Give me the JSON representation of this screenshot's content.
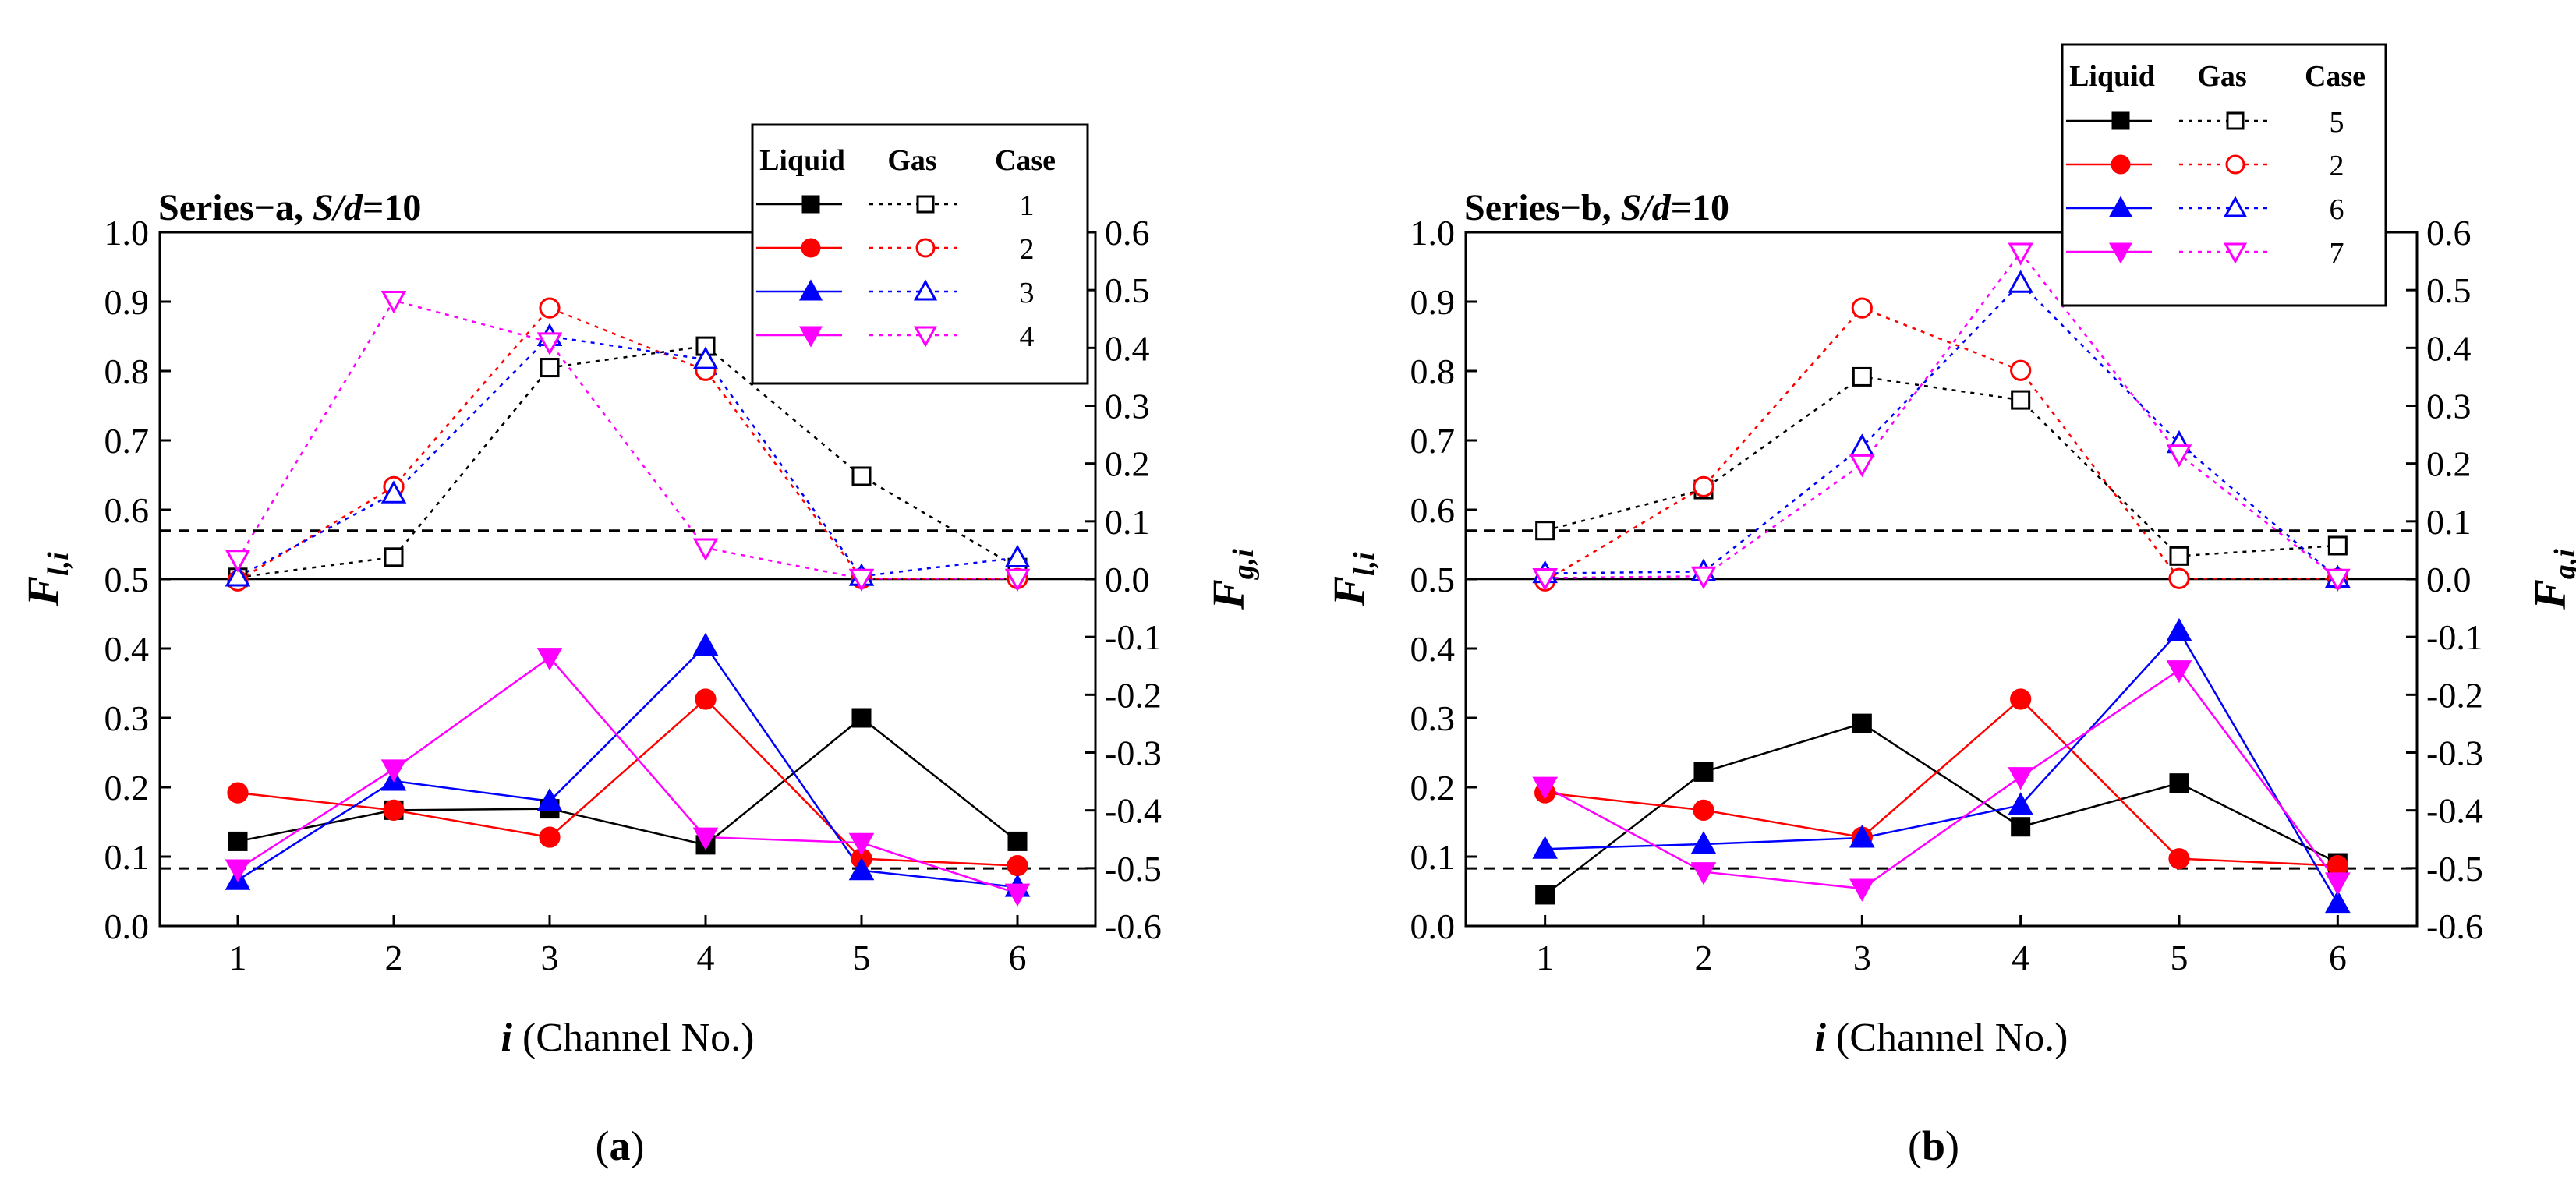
{
  "chart_data": [
    {
      "type": "line",
      "panel_label": "a",
      "title_prefix": "Series−a, ",
      "title_italic": "S/d",
      "title_suffix": "=10",
      "xlabel_italic": "i",
      "xlabel_rest": " (Channel No.)",
      "ylabel_main": "F",
      "ylabel_sub": "l,i",
      "y2label_main": "F",
      "y2label_sub": "g,i",
      "x": [
        1,
        2,
        3,
        4,
        5,
        6
      ],
      "xticks": [
        "1",
        "2",
        "3",
        "4",
        "5",
        "6"
      ],
      "xlim": [
        0.5,
        6.5
      ],
      "ylim": [
        0.0,
        1.0
      ],
      "y2lim": [
        -0.6,
        0.6
      ],
      "yticks": [
        "0.0",
        "0.1",
        "0.2",
        "0.3",
        "0.4",
        "0.5",
        "0.6",
        "0.7",
        "0.8",
        "0.9",
        "1.0"
      ],
      "y2ticks": [
        "-0.6",
        "-0.5",
        "-0.4",
        "-0.3",
        "-0.2",
        "-0.1",
        "0.0",
        "0.1",
        "0.2",
        "0.3",
        "0.4",
        "0.5",
        "0.6"
      ],
      "reference_lines": {
        "solid_y2": [
          0.0
        ],
        "dashed_y": [
          0.083,
          0.57
        ]
      },
      "legend": {
        "headers": [
          "Liquid",
          "Gas",
          "Case"
        ],
        "placement": "top-right"
      },
      "series": [
        {
          "case": "1",
          "color": "#000000",
          "marker": "square",
          "liquid": [
            0.122,
            0.167,
            0.169,
            0.117,
            0.3,
            0.122
          ],
          "gas": [
            0.003,
            0.038,
            0.366,
            0.403,
            0.178,
            0.02
          ]
        },
        {
          "case": "2",
          "color": "#ff0000",
          "marker": "circle",
          "liquid": [
            0.192,
            0.167,
            0.128,
            0.327,
            0.097,
            0.087
          ],
          "gas": [
            -0.003,
            0.16,
            0.469,
            0.361,
            0.001,
            0.001
          ]
        },
        {
          "case": "3",
          "color": "#0000ff",
          "marker": "triangle-up",
          "liquid": [
            0.066,
            0.209,
            0.18,
            0.404,
            0.08,
            0.056
          ],
          "gas": [
            0.004,
            0.148,
            0.42,
            0.38,
            0.005,
            0.037
          ]
        },
        {
          "case": "4",
          "color": "#ff00ff",
          "marker": "triangle-down",
          "liquid": [
            0.082,
            0.226,
            0.387,
            0.128,
            0.12,
            0.047
          ],
          "gas": [
            0.034,
            0.482,
            0.41,
            0.054,
            0.001,
            0.001
          ]
        }
      ]
    },
    {
      "type": "line",
      "panel_label": "b",
      "title_prefix": "Series−b, ",
      "title_italic": "S/d",
      "title_suffix": "=10",
      "xlabel_italic": "i",
      "xlabel_rest": " (Channel No.)",
      "ylabel_main": "F",
      "ylabel_sub": "l,i",
      "y2label_main": "F",
      "y2label_sub": "g,i",
      "x": [
        1,
        2,
        3,
        4,
        5,
        6
      ],
      "xticks": [
        "1",
        "2",
        "3",
        "4",
        "5",
        "6"
      ],
      "xlim": [
        0.5,
        6.5
      ],
      "ylim": [
        0.0,
        1.0
      ],
      "y2lim": [
        -0.6,
        0.6
      ],
      "yticks": [
        "0.0",
        "0.1",
        "0.2",
        "0.3",
        "0.4",
        "0.5",
        "0.6",
        "0.7",
        "0.8",
        "0.9",
        "1.0"
      ],
      "y2ticks": [
        "-0.6",
        "-0.5",
        "-0.4",
        "-0.3",
        "-0.2",
        "-0.1",
        "0.0",
        "0.1",
        "0.2",
        "0.3",
        "0.4",
        "0.5",
        "0.6"
      ],
      "reference_lines": {
        "solid_y2": [
          0.0
        ],
        "dashed_y": [
          0.083,
          0.57
        ]
      },
      "legend": {
        "headers": [
          "Liquid",
          "Gas",
          "Case"
        ],
        "placement": "top-right"
      },
      "series": [
        {
          "case": "5",
          "color": "#000000",
          "marker": "square",
          "liquid": [
            0.045,
            0.222,
            0.292,
            0.143,
            0.206,
            0.091
          ],
          "gas": [
            0.084,
            0.155,
            0.35,
            0.31,
            0.04,
            0.058
          ]
        },
        {
          "case": "2",
          "color": "#ff0000",
          "marker": "circle",
          "liquid": [
            0.192,
            0.167,
            0.128,
            0.327,
            0.097,
            0.087
          ],
          "gas": [
            -0.003,
            0.16,
            0.469,
            0.361,
            0.001,
            0.001
          ]
        },
        {
          "case": "6",
          "color": "#0000ff",
          "marker": "triangle-up",
          "liquid": [
            0.111,
            0.118,
            0.127,
            0.174,
            0.425,
            0.033
          ],
          "gas": [
            0.01,
            0.013,
            0.229,
            0.512,
            0.235,
            0.002
          ]
        },
        {
          "case": "7",
          "color": "#ff00ff",
          "marker": "triangle-down",
          "liquid": [
            0.201,
            0.078,
            0.054,
            0.215,
            0.369,
            0.063
          ],
          "gas": [
            0.002,
            0.005,
            0.199,
            0.565,
            0.216,
            0.001
          ]
        }
      ]
    }
  ]
}
